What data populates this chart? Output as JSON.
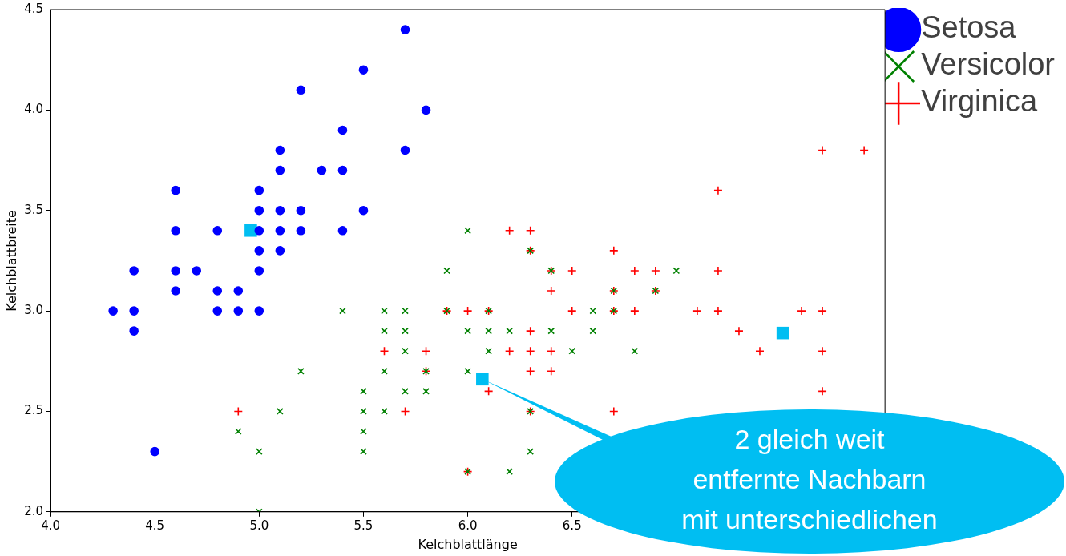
{
  "chart_data": {
    "type": "scatter",
    "xlabel": "Kelchblattlänge",
    "ylabel": "Kelchblattbreite",
    "legend": "top right",
    "grid": false,
    "xlim": [
      4.0,
      8.0
    ],
    "ylim": [
      2.0,
      4.5
    ],
    "xticks": [
      {
        "value": 4,
        "label": "4.0"
      },
      {
        "value": 4.5,
        "label": "4.5"
      },
      {
        "value": 5,
        "label": "5.0"
      },
      {
        "value": 5.5,
        "label": "5.5"
      },
      {
        "value": 6,
        "label": "6.0"
      },
      {
        "value": 6.5,
        "label": "6.5"
      },
      {
        "value": 7,
        "label": null
      },
      {
        "value": 7.5,
        "label": null
      },
      {
        "value": 8,
        "label": null
      }
    ],
    "yticks": [
      {
        "value": 2,
        "label": "2.0"
      },
      {
        "value": 2.5,
        "label": "2.5"
      },
      {
        "value": 3,
        "label": "3.0"
      },
      {
        "value": 3.5,
        "label": "3.5"
      },
      {
        "value": 4,
        "label": "4.0"
      },
      {
        "value": 4.5,
        "label": "4.5"
      }
    ],
    "series": [
      {
        "name": "Setosa",
        "color": "#0000ff",
        "marker": "circle",
        "x": [
          5.1,
          4.9,
          4.7,
          4.6,
          5.0,
          5.4,
          4.6,
          5.0,
          4.4,
          4.9,
          5.4,
          4.8,
          4.8,
          4.3,
          5.8,
          5.7,
          5.7,
          5.1,
          5.4,
          5.1,
          4.6,
          5.1,
          5.0,
          5.2,
          5.2,
          4.8,
          5.2,
          5.5,
          5.0,
          5.5,
          4.4,
          5.1,
          5.0,
          4.5,
          4.4,
          4.6,
          5.3,
          5.0
        ],
        "values": [
          3.5,
          3.0,
          3.2,
          3.1,
          3.6,
          3.9,
          3.4,
          3.4,
          2.9,
          3.1,
          3.7,
          3.4,
          3.0,
          3.0,
          4.0,
          4.4,
          3.8,
          3.8,
          3.4,
          3.7,
          3.6,
          3.3,
          3.0,
          3.5,
          3.4,
          3.1,
          4.1,
          4.2,
          3.2,
          3.5,
          3.0,
          3.4,
          3.5,
          2.3,
          3.2,
          3.2,
          3.7,
          3.3
        ]
      },
      {
        "name": "Versicolor",
        "color": "#008000",
        "marker": "x",
        "x": [
          7.0,
          6.4,
          6.9,
          5.5,
          6.5,
          5.7,
          6.3,
          4.9,
          6.6,
          5.2,
          5.0,
          5.9,
          6.0,
          6.1,
          5.6,
          6.7,
          5.6,
          5.8,
          6.2,
          5.6,
          5.9,
          6.1,
          6.3,
          6.4,
          6.6,
          6.8,
          6.7,
          6.0,
          5.7,
          5.5,
          6.0,
          5.4,
          6.0,
          6.3,
          5.5,
          5.5,
          6.1,
          5.8,
          5.0,
          5.6,
          5.7,
          5.7,
          6.2,
          5.1
        ],
        "values": [
          3.2,
          3.2,
          3.1,
          2.3,
          2.8,
          2.8,
          3.3,
          2.4,
          2.9,
          2.7,
          2.0,
          3.0,
          2.2,
          2.9,
          2.9,
          3.1,
          3.0,
          2.7,
          2.2,
          2.5,
          3.2,
          2.8,
          2.5,
          2.9,
          3.0,
          2.8,
          3.0,
          2.9,
          2.6,
          2.4,
          2.7,
          3.0,
          3.4,
          2.3,
          2.5,
          2.6,
          3.0,
          2.6,
          2.3,
          2.7,
          3.0,
          2.9,
          2.9,
          2.5
        ]
      },
      {
        "name": "Virginica",
        "color": "#ff0000",
        "marker": "cross",
        "x": [
          6.3,
          5.8,
          7.1,
          6.3,
          6.5,
          7.6,
          4.9,
          7.3,
          6.7,
          7.2,
          6.5,
          6.4,
          6.8,
          5.7,
          5.8,
          6.4,
          7.7,
          7.7,
          6.0,
          6.9,
          5.6,
          7.7,
          6.3,
          6.7,
          7.2,
          6.2,
          6.1,
          6.4,
          7.2,
          7.4,
          7.9,
          6.3,
          6.1,
          7.7,
          6.3,
          6.4,
          6.0,
          6.9,
          6.7,
          6.8,
          6.7,
          6.3,
          6.2,
          5.9
        ],
        "values": [
          3.3,
          2.7,
          3.0,
          2.9,
          3.0,
          3.0,
          2.5,
          2.9,
          2.5,
          3.6,
          3.2,
          2.7,
          3.0,
          2.5,
          2.8,
          3.2,
          3.8,
          2.6,
          2.2,
          3.2,
          2.8,
          2.8,
          2.7,
          3.3,
          3.2,
          2.8,
          3.0,
          2.8,
          3.0,
          2.8,
          3.8,
          2.8,
          2.6,
          3.0,
          3.4,
          3.1,
          3.0,
          3.1,
          3.1,
          3.2,
          3.0,
          2.5,
          3.4,
          3.0
        ]
      },
      {
        "color": "#00bef2",
        "marker": "square",
        "x": [
          4.96,
          6.07,
          7.51
        ],
        "values": [
          3.4,
          2.66,
          2.89
        ]
      }
    ],
    "annotations": [
      {
        "text": "2 gleich weit\nentfernte Nachbarn\nmit unterschiedlichen",
        "x": 6.07,
        "y": 2.66
      }
    ]
  }
}
